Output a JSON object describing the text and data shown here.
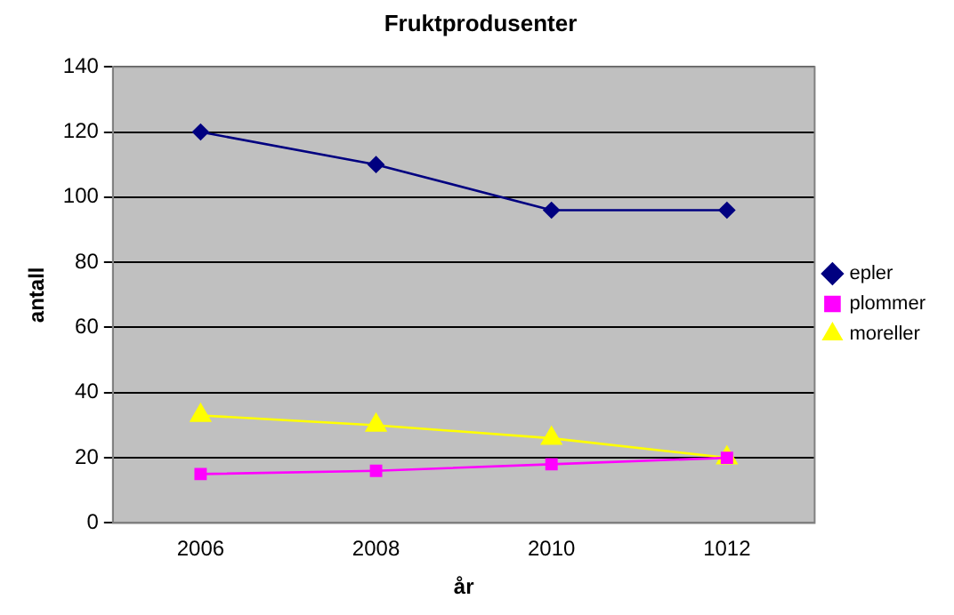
{
  "chart_data": {
    "type": "line",
    "title": "Fruktprodusenter",
    "xlabel": "år",
    "ylabel": "antall",
    "categories": [
      "2006",
      "2008",
      "2010",
      "1012"
    ],
    "series": [
      {
        "name": "epler",
        "color": "#000080",
        "marker": "diamond",
        "values": [
          120,
          110,
          96,
          96
        ]
      },
      {
        "name": "plommer",
        "color": "#ff00ff",
        "marker": "square",
        "values": [
          15,
          16,
          18,
          20
        ]
      },
      {
        "name": "moreller",
        "color": "#ffff00",
        "marker": "triangle",
        "values": [
          33,
          30,
          26,
          20
        ]
      }
    ],
    "ylim": [
      0,
      140
    ],
    "yticks": [
      0,
      20,
      40,
      60,
      80,
      100,
      120,
      140
    ],
    "grid": "y",
    "legend": "right",
    "line_style": "solid"
  }
}
